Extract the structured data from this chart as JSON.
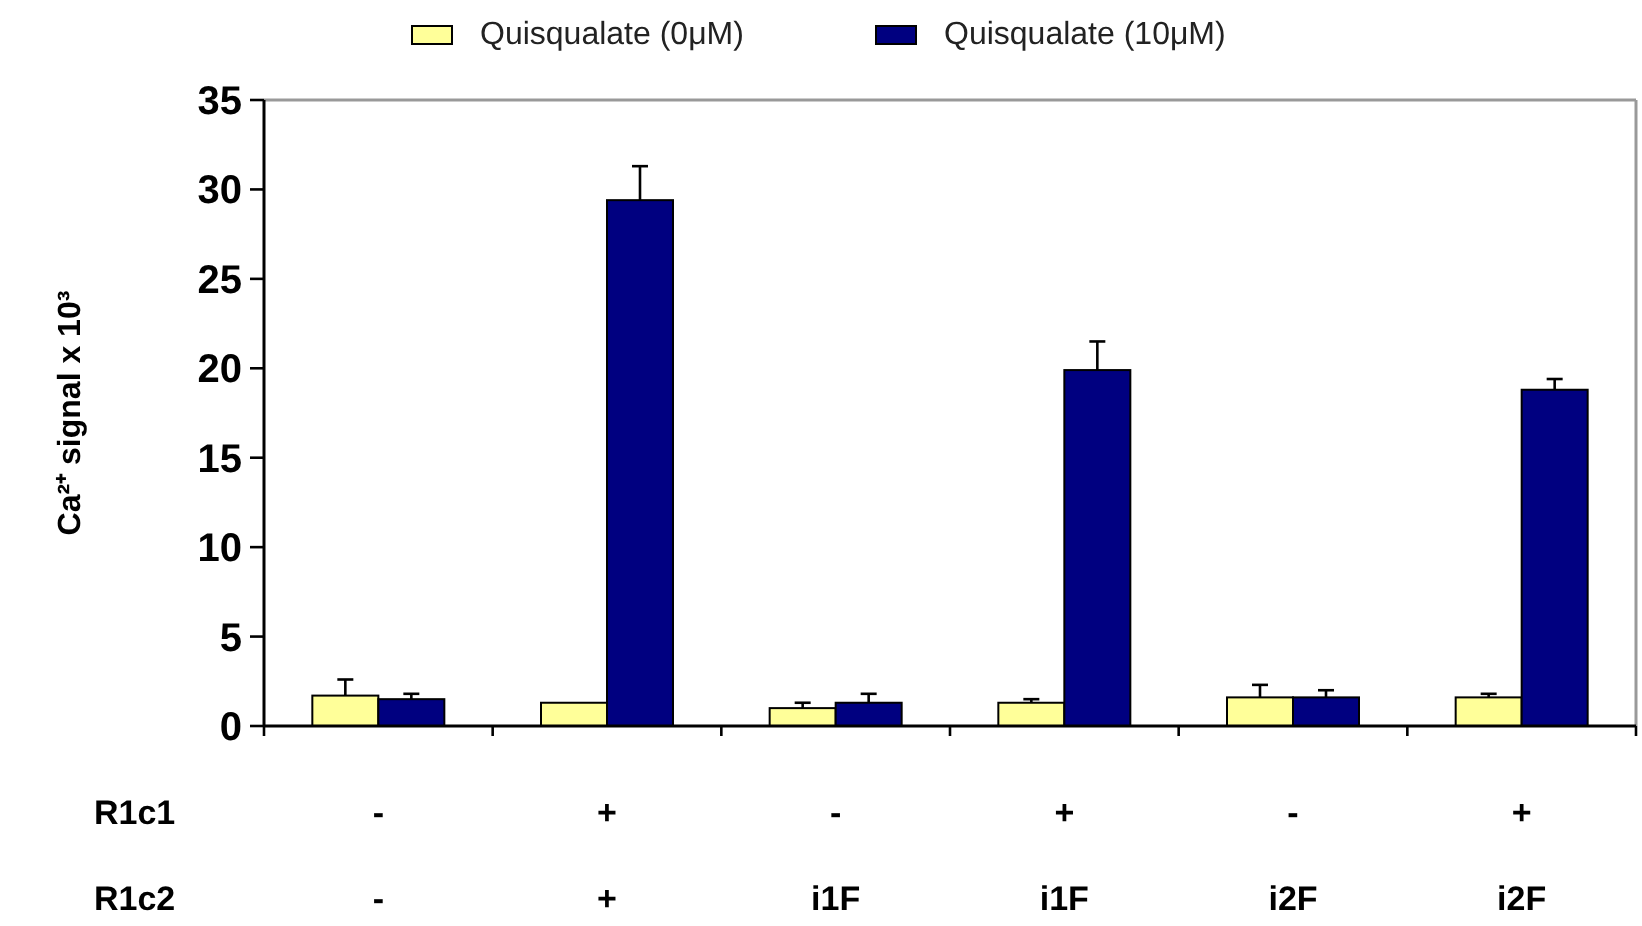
{
  "chart_data": {
    "type": "bar",
    "ylabel": "Ca²⁺ signal x 10³",
    "categories": [
      "-\n-",
      "+\n+",
      "-\ni1F",
      "+\ni1F",
      "-\ni2F",
      "+\ni2F"
    ],
    "series": [
      {
        "name": "Quisqualate (0μM)",
        "color": "#ffff99",
        "values": [
          1.7,
          1.3,
          1.0,
          1.3,
          1.6,
          1.6
        ],
        "errors": [
          0.9,
          null,
          0.3,
          0.2,
          0.7,
          0.2
        ]
      },
      {
        "name": "Quisqualate (10μM)",
        "color": "#000080",
        "values": [
          1.5,
          29.4,
          1.3,
          19.9,
          1.6,
          18.8
        ],
        "errors": [
          0.3,
          1.9,
          0.5,
          1.6,
          0.4,
          0.6
        ]
      }
    ],
    "annotations": [
      "R1c1",
      "R1c2"
    ],
    "ylim": [
      0,
      35
    ],
    "yticks": [
      0,
      5,
      10,
      15,
      20,
      25,
      30,
      35
    ],
    "grid": false,
    "legend": "top"
  }
}
